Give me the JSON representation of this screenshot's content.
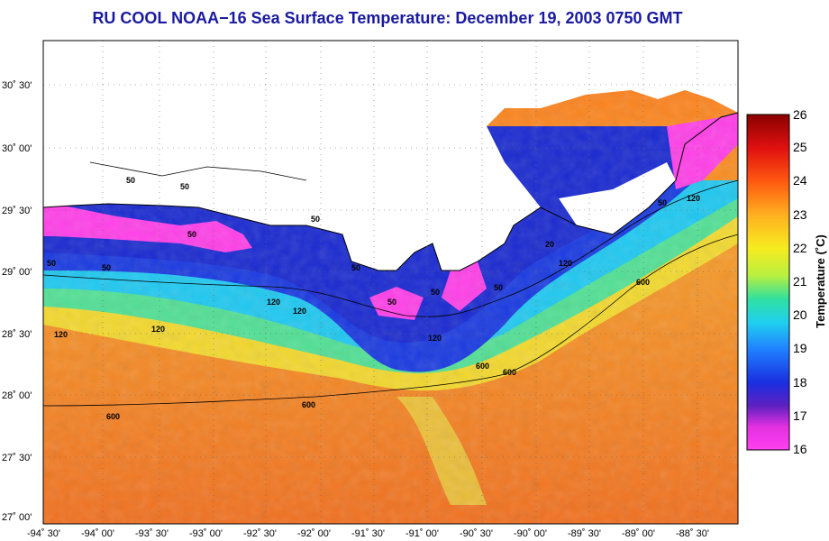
{
  "title": "RU COOL  NOAA−16  Sea Surface Temperature:  December 19, 2003 0750 GMT",
  "latitude_labels": [
    "30˚ 30'",
    "30˚ 00'",
    "29˚ 30'",
    "29˚ 00'",
    "28˚ 30'",
    "28˚ 00'",
    "27˚ 30'",
    "27˚ 00'"
  ],
  "longitude_labels": [
    "-94˚ 30'",
    "-94˚ 00'",
    "-93˚ 30'",
    "-93˚ 00'",
    "-92˚ 30'",
    "-92˚ 00'",
    "-91˚ 30'",
    "-91˚ 00'",
    "-90˚ 30'",
    "-90˚ 00'",
    "-89˚ 30'",
    "-89˚ 00'",
    "-88˚ 30'"
  ],
  "colorbar": {
    "title": "Temperature (˚C)",
    "ticks": [
      "26",
      "25",
      "24",
      "23",
      "22",
      "21",
      "20",
      "19",
      "18",
      "17",
      "16"
    ]
  },
  "contour_labels": [
    {
      "text": "50",
      "id": "c1"
    },
    {
      "text": "50",
      "id": "c2"
    },
    {
      "text": "50",
      "id": "c3"
    },
    {
      "text": "50",
      "id": "c4"
    },
    {
      "text": "50",
      "id": "c5"
    },
    {
      "text": "50",
      "id": "c6"
    },
    {
      "text": "50",
      "id": "c7"
    },
    {
      "text": "50",
      "id": "c8"
    },
    {
      "text": "50",
      "id": "c9"
    },
    {
      "text": "50",
      "id": "c10"
    },
    {
      "text": "20",
      "id": "c11"
    },
    {
      "text": "50",
      "id": "c12"
    },
    {
      "text": "120",
      "id": "c13"
    },
    {
      "text": "120",
      "id": "c14"
    },
    {
      "text": "120",
      "id": "c15"
    },
    {
      "text": "120",
      "id": "c16"
    },
    {
      "text": "120",
      "id": "c17"
    },
    {
      "text": "120",
      "id": "c18"
    },
    {
      "text": "120",
      "id": "c19"
    },
    {
      "text": "600",
      "id": "c20"
    },
    {
      "text": "600",
      "id": "c21"
    },
    {
      "text": "600",
      "id": "c22"
    },
    {
      "text": "600",
      "id": "c23"
    },
    {
      "text": "600",
      "id": "c24"
    }
  ],
  "colors": {
    "title": "#1a1aa0",
    "land": "#ffffff",
    "warm": "#f07a1e",
    "cool": "#1030d0",
    "coldest": "#ff40e0"
  }
}
